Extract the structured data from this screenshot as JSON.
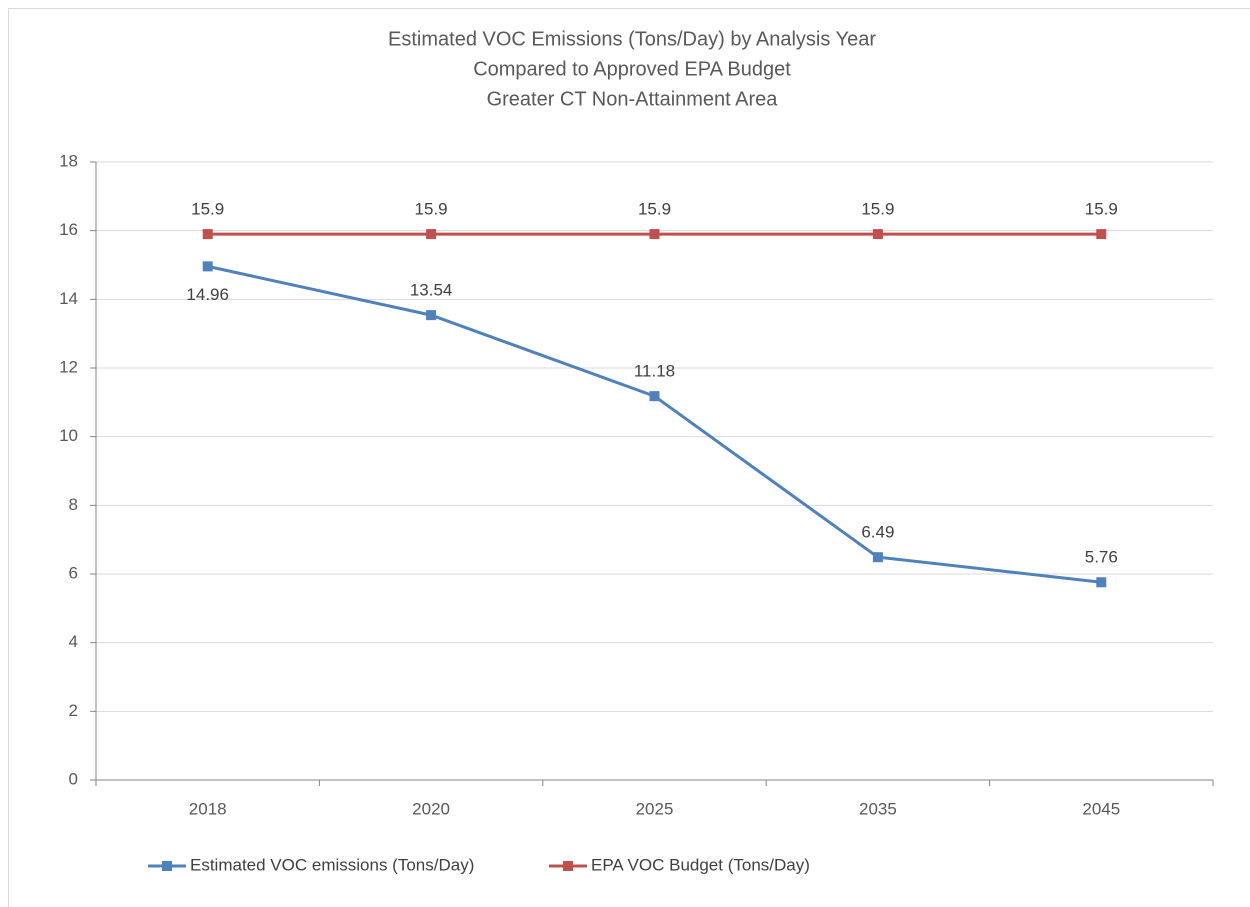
{
  "chart_data": {
    "type": "line",
    "title": [
      "Estimated VOC Emissions (Tons/Day) by Analysis Year",
      "Compared to Approved EPA Budget",
      "Greater CT Non-Attainment Area"
    ],
    "categories": [
      "2018",
      "2020",
      "2025",
      "2035",
      "2045"
    ],
    "series": [
      {
        "name": "Estimated VOC emissions (Tons/Day)",
        "color": "#4f81bd",
        "values": [
          14.96,
          13.54,
          11.18,
          6.49,
          5.76
        ]
      },
      {
        "name": "EPA VOC Budget (Tons/Day)",
        "color": "#c0504d",
        "values": [
          15.9,
          15.9,
          15.9,
          15.9,
          15.9
        ]
      }
    ],
    "ylim": [
      0,
      18
    ],
    "yticks": [
      0,
      2,
      4,
      6,
      8,
      10,
      12,
      14,
      16,
      18
    ],
    "grid": true,
    "legend": "bottom"
  }
}
